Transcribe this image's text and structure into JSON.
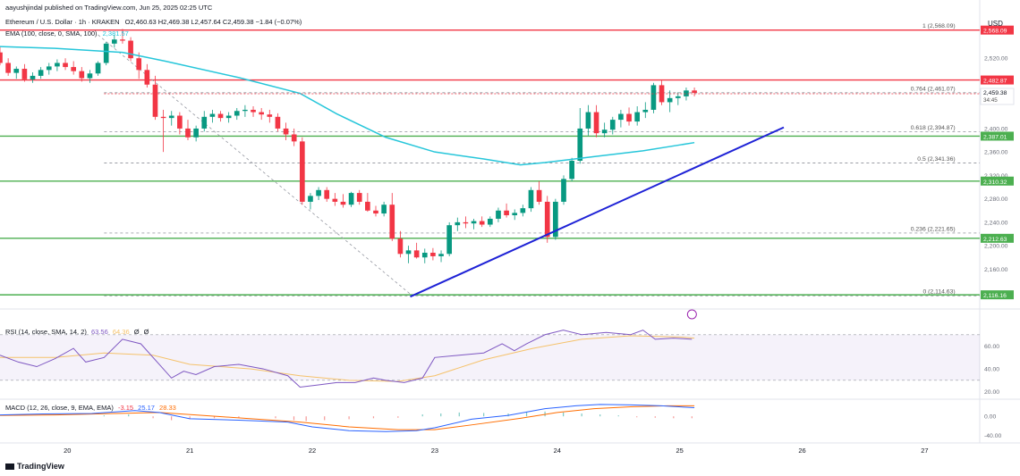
{
  "header": {
    "publisher": "aayushjindal published on TradingView.com, Jun 25, 2025 02:25 UTC",
    "symbol_line": "Ethereum / U.S. Dollar · 1h · KRAKEN",
    "ohlc": "O2,460.63  H2,469.38  L2,457.64  C2,459.38  −1.84 (−0.07%)",
    "ema_label": "EMA (100, close, 0, SMA, 100)",
    "ema_value": "2,381.57",
    "currency": "USD"
  },
  "footer": {
    "brand": "TradingView"
  },
  "colors": {
    "up": "#089981",
    "down": "#f23645",
    "ema": "#26c6da",
    "trendline": "#1e22d6",
    "support": "#4caf50",
    "resistance": "#f23645",
    "rsi": "#7e57c2",
    "rsi_ma": "#f5c26b",
    "macd": "#2962ff",
    "signal": "#ff6d00"
  },
  "chart_data": {
    "type": "candlestick",
    "price_range": [
      2095,
      2592
    ],
    "x_range": [
      19.45,
      27.45
    ],
    "x_ticks": [
      {
        "v": 20,
        "label": "20"
      },
      {
        "v": 21,
        "label": "21"
      },
      {
        "v": 22,
        "label": "22"
      },
      {
        "v": 23,
        "label": "23"
      },
      {
        "v": 24,
        "label": "24"
      },
      {
        "v": 25,
        "label": "25"
      },
      {
        "v": 26,
        "label": "26"
      },
      {
        "v": 27,
        "label": "27"
      }
    ],
    "y_ticks": [
      "2,520.00",
      "2,400.00",
      "2,360.00",
      "2,320.00",
      "2,280.00",
      "2,240.00",
      "2,200.00",
      "2,160.00"
    ],
    "candles": [
      [
        2530,
        2541,
        2508,
        2512
      ],
      [
        2512,
        2520,
        2490,
        2495
      ],
      [
        2495,
        2506,
        2485,
        2502
      ],
      [
        2502,
        2510,
        2480,
        2484
      ],
      [
        2484,
        2496,
        2478,
        2490
      ],
      [
        2490,
        2505,
        2485,
        2500
      ],
      [
        2500,
        2512,
        2492,
        2506
      ],
      [
        2506,
        2518,
        2498,
        2512
      ],
      [
        2512,
        2520,
        2500,
        2505
      ],
      [
        2505,
        2515,
        2492,
        2498
      ],
      [
        2498,
        2505,
        2480,
        2486
      ],
      [
        2486,
        2500,
        2478,
        2494
      ],
      [
        2494,
        2515,
        2490,
        2512
      ],
      [
        2512,
        2548,
        2508,
        2545
      ],
      [
        2545,
        2560,
        2538,
        2552
      ],
      [
        2552,
        2570,
        2545,
        2550
      ],
      [
        2550,
        2556,
        2515,
        2520
      ],
      [
        2520,
        2530,
        2485,
        2500
      ],
      [
        2500,
        2510,
        2470,
        2475
      ],
      [
        2475,
        2490,
        2415,
        2420
      ],
      [
        2420,
        2432,
        2360,
        2418
      ],
      [
        2418,
        2430,
        2405,
        2422
      ],
      [
        2422,
        2428,
        2390,
        2400
      ],
      [
        2400,
        2415,
        2380,
        2385
      ],
      [
        2385,
        2405,
        2378,
        2400
      ],
      [
        2400,
        2430,
        2395,
        2420
      ],
      [
        2420,
        2432,
        2410,
        2425
      ],
      [
        2425,
        2430,
        2412,
        2418
      ],
      [
        2418,
        2428,
        2410,
        2422
      ],
      [
        2422,
        2435,
        2415,
        2430
      ],
      [
        2430,
        2440,
        2420,
        2432
      ],
      [
        2432,
        2438,
        2420,
        2428
      ],
      [
        2428,
        2435,
        2415,
        2424
      ],
      [
        2424,
        2432,
        2410,
        2420
      ],
      [
        2420,
        2426,
        2395,
        2400
      ],
      [
        2400,
        2410,
        2380,
        2390
      ],
      [
        2390,
        2400,
        2370,
        2378
      ],
      [
        2378,
        2385,
        2270,
        2275
      ],
      [
        2275,
        2290,
        2262,
        2285
      ],
      [
        2285,
        2300,
        2278,
        2295
      ],
      [
        2295,
        2300,
        2275,
        2280
      ],
      [
        2280,
        2290,
        2268,
        2275
      ],
      [
        2275,
        2288,
        2265,
        2270
      ],
      [
        2270,
        2292,
        2266,
        2290
      ],
      [
        2290,
        2295,
        2270,
        2275
      ],
      [
        2275,
        2290,
        2258,
        2260
      ],
      [
        2260,
        2268,
        2250,
        2255
      ],
      [
        2255,
        2275,
        2250,
        2270
      ],
      [
        2270,
        2290,
        2208,
        2212
      ],
      [
        2212,
        2225,
        2180,
        2186
      ],
      [
        2186,
        2200,
        2170,
        2192
      ],
      [
        2192,
        2205,
        2178,
        2180
      ],
      [
        2180,
        2195,
        2170,
        2188
      ],
      [
        2188,
        2196,
        2175,
        2182
      ],
      [
        2182,
        2192,
        2172,
        2186
      ],
      [
        2186,
        2240,
        2182,
        2235
      ],
      [
        2235,
        2248,
        2225,
        2240
      ],
      [
        2240,
        2250,
        2230,
        2238
      ],
      [
        2238,
        2246,
        2228,
        2242
      ],
      [
        2242,
        2250,
        2232,
        2236
      ],
      [
        2236,
        2250,
        2232,
        2246
      ],
      [
        2246,
        2265,
        2240,
        2260
      ],
      [
        2260,
        2272,
        2248,
        2252
      ],
      [
        2252,
        2262,
        2244,
        2256
      ],
      [
        2256,
        2270,
        2250,
        2264
      ],
      [
        2264,
        2300,
        2258,
        2295
      ],
      [
        2295,
        2310,
        2270,
        2275
      ],
      [
        2275,
        2285,
        2205,
        2215
      ],
      [
        2215,
        2280,
        2210,
        2275
      ],
      [
        2275,
        2320,
        2270,
        2314
      ],
      [
        2314,
        2350,
        2310,
        2345
      ],
      [
        2345,
        2435,
        2340,
        2400
      ],
      [
        2400,
        2440,
        2388,
        2428
      ],
      [
        2428,
        2440,
        2385,
        2392
      ],
      [
        2392,
        2410,
        2385,
        2398
      ],
      [
        2398,
        2420,
        2390,
        2415
      ],
      [
        2415,
        2432,
        2402,
        2425
      ],
      [
        2425,
        2436,
        2405,
        2412
      ],
      [
        2412,
        2438,
        2405,
        2428
      ],
      [
        2428,
        2445,
        2418,
        2432
      ],
      [
        2432,
        2478,
        2426,
        2474
      ],
      [
        2474,
        2482,
        2440,
        2445
      ],
      [
        2445,
        2465,
        2428,
        2452
      ],
      [
        2452,
        2462,
        2440,
        2455
      ],
      [
        2455,
        2470,
        2448,
        2465
      ],
      [
        2465,
        2470,
        2455,
        2461
      ]
    ],
    "ema": [
      [
        19.45,
        2540
      ],
      [
        19.9,
        2537
      ],
      [
        20.45,
        2530
      ],
      [
        20.8,
        2515
      ],
      [
        21.4,
        2487
      ],
      [
        21.9,
        2460
      ],
      [
        22.2,
        2425
      ],
      [
        22.6,
        2385
      ],
      [
        23.0,
        2360
      ],
      [
        23.4,
        2348
      ],
      [
        23.7,
        2338
      ],
      [
        23.9,
        2342
      ],
      [
        24.3,
        2352
      ],
      [
        24.7,
        2362
      ],
      [
        25.0,
        2372
      ],
      [
        25.12,
        2376
      ]
    ],
    "trendline": [
      [
        22.8,
        2113
      ],
      [
        25.85,
        2402
      ]
    ],
    "dashed_swing": [
      [
        20.25,
        2560
      ],
      [
        22.82,
        2114
      ]
    ],
    "horizontal_levels": [
      {
        "price": 2568.09,
        "label": "2,568.09",
        "kind": "resistance"
      },
      {
        "price": 2482.87,
        "label": "2,482.87",
        "kind": "resistance"
      },
      {
        "price": 2387.01,
        "label": "2,387.01",
        "kind": "support"
      },
      {
        "price": 2310.32,
        "label": "2,310.32",
        "kind": "support"
      },
      {
        "price": 2212.63,
        "label": "2,212.63",
        "kind": "support"
      },
      {
        "price": 2116.16,
        "label": "2,116.16",
        "kind": "support"
      }
    ],
    "current_price": {
      "price": 2459.38,
      "label": "2,459.38",
      "countdown": "34:45"
    },
    "fibonacci": [
      {
        "ratio": "1",
        "price": 2568.09,
        "label": "1 (2,568.09)"
      },
      {
        "ratio": "0.764",
        "price": 2461.07,
        "label": "0.764 (2,461.07)"
      },
      {
        "ratio": "0.618",
        "price": 2394.87,
        "label": "0.618 (2,394.87)"
      },
      {
        "ratio": "0.5",
        "price": 2341.36,
        "label": "0.5 (2,341.36)"
      },
      {
        "ratio": "0.236",
        "price": 2221.65,
        "label": "0.236 (2,221.65)"
      },
      {
        "ratio": "0",
        "price": 2114.63,
        "label": "0 (2,114.63)"
      }
    ],
    "rsi": {
      "label": "RSI (14, close, SMA, 14, 2)",
      "values_text": [
        "63.56",
        "64.36",
        "Ø",
        "Ø"
      ],
      "range": [
        15,
        80
      ],
      "ticks": [
        "60.00",
        "40.00",
        "20.00"
      ],
      "band": [
        30,
        70
      ],
      "line": [
        [
          19.45,
          52
        ],
        [
          19.6,
          46
        ],
        [
          19.75,
          42
        ],
        [
          19.9,
          49
        ],
        [
          20.05,
          58
        ],
        [
          20.15,
          46
        ],
        [
          20.3,
          50
        ],
        [
          20.45,
          66
        ],
        [
          20.6,
          62
        ],
        [
          20.75,
          44
        ],
        [
          20.85,
          32
        ],
        [
          20.95,
          38
        ],
        [
          21.05,
          35
        ],
        [
          21.2,
          42
        ],
        [
          21.4,
          44
        ],
        [
          21.6,
          40
        ],
        [
          21.8,
          34
        ],
        [
          21.9,
          24
        ],
        [
          22.05,
          26
        ],
        [
          22.2,
          28
        ],
        [
          22.35,
          28
        ],
        [
          22.5,
          32
        ],
        [
          22.6,
          30
        ],
        [
          22.75,
          28
        ],
        [
          22.9,
          32
        ],
        [
          23.0,
          50
        ],
        [
          23.2,
          52
        ],
        [
          23.4,
          54
        ],
        [
          23.55,
          62
        ],
        [
          23.65,
          56
        ],
        [
          23.75,
          62
        ],
        [
          23.9,
          70
        ],
        [
          24.05,
          74
        ],
        [
          24.2,
          70
        ],
        [
          24.4,
          72
        ],
        [
          24.6,
          70
        ],
        [
          24.7,
          74
        ],
        [
          24.8,
          66
        ],
        [
          24.95,
          67
        ],
        [
          25.1,
          66
        ]
      ],
      "ma_line": [
        [
          19.45,
          50
        ],
        [
          19.9,
          50
        ],
        [
          20.3,
          54
        ],
        [
          20.7,
          52
        ],
        [
          21.0,
          44
        ],
        [
          21.5,
          40
        ],
        [
          21.9,
          34
        ],
        [
          22.3,
          30
        ],
        [
          22.7,
          29
        ],
        [
          23.0,
          34
        ],
        [
          23.4,
          48
        ],
        [
          23.8,
          58
        ],
        [
          24.2,
          66
        ],
        [
          24.6,
          69
        ],
        [
          25.0,
          68
        ],
        [
          25.12,
          67
        ]
      ]
    },
    "macd": {
      "label": "MACD (12, 26, close, 9, EMA, EMA)",
      "values_text": [
        "-3.15",
        "25.17",
        "28.33"
      ],
      "range": [
        -52,
        34
      ],
      "ticks": [
        "0.00",
        "-40.00"
      ],
      "macd_line": [
        [
          19.45,
          3
        ],
        [
          19.8,
          5
        ],
        [
          20.2,
          6
        ],
        [
          20.55,
          12
        ],
        [
          20.75,
          8
        ],
        [
          21.0,
          -5
        ],
        [
          21.4,
          -8
        ],
        [
          21.8,
          -12
        ],
        [
          22.0,
          -22
        ],
        [
          22.3,
          -30
        ],
        [
          22.6,
          -32
        ],
        [
          22.85,
          -30
        ],
        [
          23.0,
          -24
        ],
        [
          23.3,
          -6
        ],
        [
          23.6,
          2
        ],
        [
          23.9,
          16
        ],
        [
          24.15,
          22
        ],
        [
          24.35,
          25
        ],
        [
          24.6,
          24
        ],
        [
          24.85,
          22
        ],
        [
          25.12,
          18
        ]
      ],
      "signal_line": [
        [
          19.45,
          2
        ],
        [
          19.9,
          3
        ],
        [
          20.4,
          6
        ],
        [
          20.75,
          8
        ],
        [
          21.1,
          2
        ],
        [
          21.5,
          -5
        ],
        [
          21.9,
          -12
        ],
        [
          22.3,
          -22
        ],
        [
          22.7,
          -28
        ],
        [
          23.0,
          -28
        ],
        [
          23.3,
          -18
        ],
        [
          23.7,
          -4
        ],
        [
          24.0,
          8
        ],
        [
          24.3,
          16
        ],
        [
          24.6,
          20
        ],
        [
          24.9,
          22
        ],
        [
          25.12,
          22
        ]
      ],
      "histogram": [
        [
          20.3,
          2
        ],
        [
          20.5,
          4
        ],
        [
          20.7,
          -4
        ],
        [
          20.85,
          -8
        ],
        [
          21.0,
          -6
        ],
        [
          21.2,
          -4
        ],
        [
          21.4,
          -3
        ],
        [
          21.7,
          -4
        ],
        [
          21.85,
          -8
        ],
        [
          21.95,
          -10
        ],
        [
          22.1,
          -8
        ],
        [
          22.3,
          -6
        ],
        [
          22.5,
          -4
        ],
        [
          22.7,
          -3
        ],
        [
          22.9,
          4
        ],
        [
          23.05,
          6
        ],
        [
          23.2,
          8
        ],
        [
          23.4,
          7
        ],
        [
          23.6,
          6
        ],
        [
          23.75,
          9
        ],
        [
          23.9,
          10
        ],
        [
          24.05,
          8
        ],
        [
          24.2,
          6
        ],
        [
          24.35,
          4
        ],
        [
          24.5,
          2
        ],
        [
          24.65,
          -2
        ],
        [
          24.8,
          -3
        ],
        [
          24.95,
          -4
        ],
        [
          25.1,
          -4
        ]
      ]
    }
  }
}
